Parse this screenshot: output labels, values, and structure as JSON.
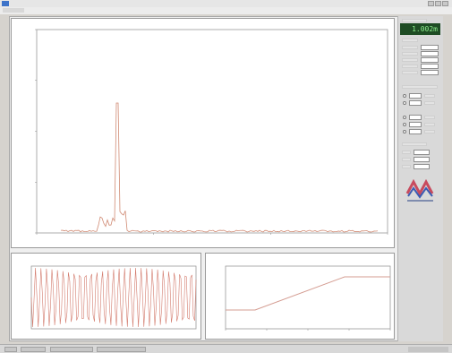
{
  "window": {
    "title": "",
    "menu_items": [
      ""
    ]
  },
  "main_plot": {
    "title": "",
    "xlabel": "",
    "peak_label": "",
    "color": "#d08a73"
  },
  "bottom_left_plot": {
    "title": "",
    "color": "#d37b6d"
  },
  "bottom_right_plot": {
    "title": "",
    "xlabel": "",
    "ylabel": "",
    "color": "#d49c91"
  },
  "right_panel": {
    "readout": "1.002m",
    "section_labels": [
      "",
      "",
      "",
      ""
    ],
    "fields": [
      "",
      "",
      "",
      "",
      "",
      "",
      "",
      ""
    ]
  },
  "taskbar": {
    "buttons": [
      "",
      "",
      "",
      ""
    ]
  },
  "icons": [
    "app-icon",
    "logo-icon"
  ],
  "colors": {
    "background": "#d6d3ce",
    "plot_bg": "#ffffff",
    "trace_main": "#d08a73",
    "trace_bottom_left": "#d37b6d",
    "trace_bottom_right": "#d49c91",
    "readout_bg": "#1e4c24",
    "readout_text": "#8ff08f",
    "logo_red": "#c84b5e",
    "logo_blue": "#3b5bb3"
  }
}
